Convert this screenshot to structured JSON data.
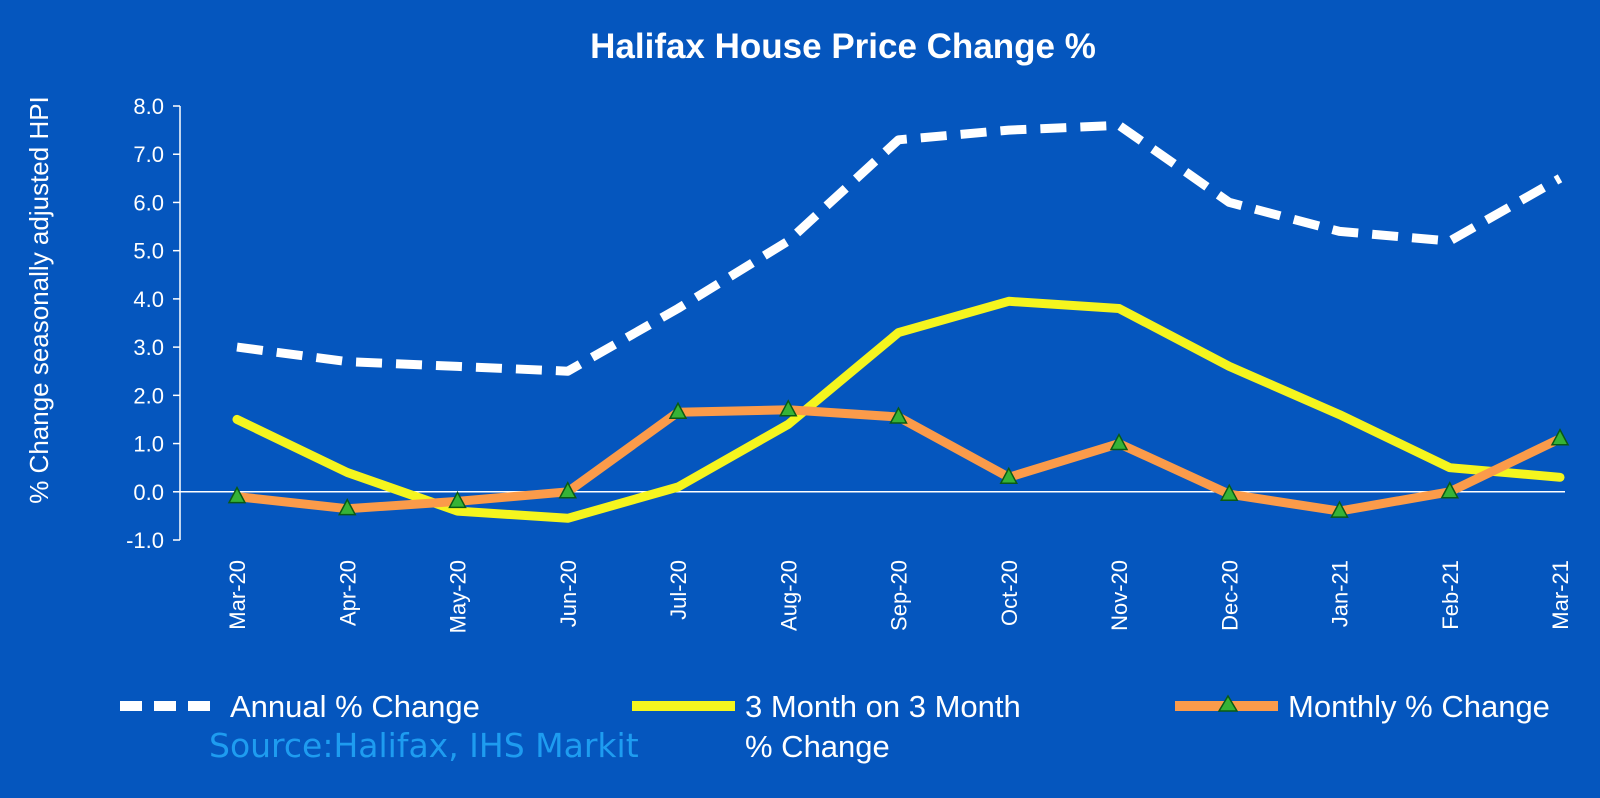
{
  "chart_data": {
    "type": "line",
    "title": "Halifax House Price Change %",
    "ylabel": "% Change seasonally adjusted HPI",
    "xlabel": "",
    "ylim": [
      -1.0,
      8.0
    ],
    "ytick_labels": [
      "8.0",
      "7.0",
      "6.0",
      "5.0",
      "4.0",
      "3.0",
      "2.0",
      "1.0",
      "0.0",
      "-1.0"
    ],
    "categories": [
      "Mar-20",
      "Apr-20",
      "May-20",
      "Jun-20",
      "Jul-20",
      "Aug-20",
      "Sep-20",
      "Oct-20",
      "Nov-20",
      "Dec-20",
      "Jan-21",
      "Feb-21",
      "Mar-21"
    ],
    "series": [
      {
        "name": "Annual % Change",
        "style": "dashed",
        "color": "#ffffff",
        "values": [
          3.0,
          2.7,
          2.6,
          2.5,
          3.8,
          5.2,
          7.3,
          7.5,
          7.6,
          6.0,
          5.4,
          5.2,
          6.5
        ]
      },
      {
        "name": "3 Month on 3 Month % Change",
        "legend_lines": [
          "3 Month on 3 Month",
          "% Change"
        ],
        "style": "solid",
        "color": "#f5f51e",
        "values": [
          1.5,
          0.4,
          -0.4,
          -0.55,
          0.1,
          1.4,
          3.3,
          3.95,
          3.8,
          2.6,
          1.6,
          0.5,
          0.3
        ]
      },
      {
        "name": "Monthly % Change",
        "style": "solid-triangle-markers",
        "color": "#fb9b4a",
        "marker_color": "#36b336",
        "values": [
          -0.1,
          -0.35,
          -0.2,
          0.0,
          1.65,
          1.7,
          1.55,
          0.3,
          1.0,
          -0.05,
          -0.4,
          0.0,
          1.1
        ]
      }
    ],
    "grid": false,
    "legend_position": "bottom"
  },
  "source_note": "Source:Halifax, IHS Markit"
}
